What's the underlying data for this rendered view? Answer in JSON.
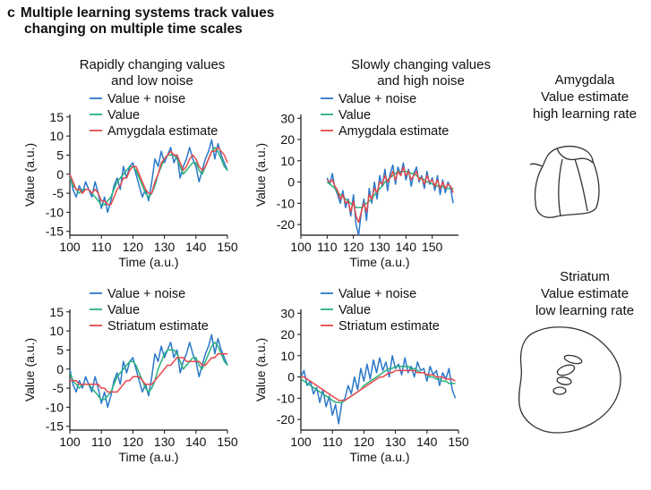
{
  "figure": {
    "panel_label": "c",
    "title_line1": "Multiple learning systems track values",
    "title_line2": "changing on multiple time scales"
  },
  "column_headers": {
    "rapid_line1": "Rapidly changing values",
    "rapid_line2": "and low noise",
    "slow_line1": "Slowly changing values",
    "slow_line2": "and high noise"
  },
  "side_labels": {
    "amygdala": [
      "Amygdala",
      "Value estimate",
      "high learning rate"
    ],
    "striatum": [
      "Striatum",
      "Value estimate",
      "low learning rate"
    ]
  },
  "colors": {
    "noise": "#2a78c8",
    "value": "#27b07a",
    "estimate": "#e8474b"
  },
  "chart_data": [
    {
      "type": "line",
      "xlabel": "Time (a.u.)",
      "ylabel": "Value (a.u.)",
      "xlim": [
        100,
        150
      ],
      "ylim": [
        -16,
        18
      ],
      "xticks": [
        100,
        110,
        120,
        130,
        140,
        150
      ],
      "yticks": [
        -15,
        -10,
        -5,
        0,
        5,
        10,
        15
      ],
      "legend_position": "top-center",
      "x": [
        100,
        101,
        102,
        103,
        104,
        105,
        106,
        107,
        108,
        109,
        110,
        111,
        112,
        113,
        114,
        115,
        116,
        117,
        118,
        119,
        120,
        121,
        122,
        123,
        124,
        125,
        126,
        127,
        128,
        129,
        130,
        131,
        132,
        133,
        134,
        135,
        136,
        137,
        138,
        139,
        140,
        141,
        142,
        143,
        144,
        145,
        146,
        147,
        148,
        149,
        150
      ],
      "series": [
        {
          "name": "Value + noise",
          "role": "noise",
          "values": [
            0,
            -4,
            -6,
            -3,
            -5,
            -2,
            -4,
            -6,
            -2,
            -5,
            -9,
            -6,
            -10,
            -7,
            -3,
            -1,
            -4,
            2,
            -1,
            2,
            3,
            0,
            -3,
            -6,
            -4,
            -7,
            -2,
            4,
            2,
            6,
            3,
            5,
            7,
            3,
            5,
            -1,
            2,
            4,
            7,
            4,
            2,
            -2,
            1,
            4,
            6,
            9,
            4,
            8,
            5,
            3,
            1
          ]
        },
        {
          "name": "Value",
          "role": "value",
          "values": [
            -1,
            -3,
            -4,
            -5,
            -4,
            -4,
            -4,
            -5,
            -6,
            -7,
            -8,
            -8,
            -7,
            -6,
            -4,
            -2,
            -1,
            0,
            1,
            2,
            2,
            1,
            -1,
            -3,
            -5,
            -6,
            -5,
            -3,
            0,
            2,
            4,
            5,
            5,
            5,
            4,
            2,
            0,
            1,
            2,
            3,
            3,
            1,
            0,
            2,
            4,
            6,
            7,
            6,
            4,
            2,
            1
          ]
        },
        {
          "name": "Amygdala estimate",
          "role": "estimate",
          "values": [
            0,
            -2,
            -4,
            -4,
            -5,
            -4,
            -4,
            -5,
            -4,
            -5,
            -7,
            -7,
            -8,
            -8,
            -6,
            -4,
            -3,
            -1,
            -1,
            1,
            2,
            2,
            0,
            -2,
            -4,
            -5,
            -5,
            -2,
            0,
            3,
            4,
            5,
            6,
            5,
            5,
            3,
            1,
            2,
            4,
            5,
            4,
            2,
            1,
            2,
            4,
            6,
            6,
            7,
            6,
            5,
            3
          ]
        }
      ]
    },
    {
      "type": "line",
      "xlabel": "Time (a.u.)",
      "ylabel": "Value (a.u.)",
      "xlim": [
        100,
        160
      ],
      "ylim": [
        -25,
        36
      ],
      "xticks": [
        100,
        110,
        120,
        130,
        140,
        150
      ],
      "yticks": [
        -20,
        -10,
        0,
        10,
        20,
        30
      ],
      "legend_position": "top-center",
      "x": [
        110,
        111,
        112,
        113,
        114,
        115,
        116,
        117,
        118,
        119,
        120,
        121,
        122,
        123,
        124,
        125,
        126,
        127,
        128,
        129,
        130,
        131,
        132,
        133,
        134,
        135,
        136,
        137,
        138,
        139,
        140,
        141,
        142,
        143,
        144,
        145,
        146,
        147,
        148,
        149,
        150,
        151,
        152,
        153,
        154,
        155,
        156,
        157,
        158
      ],
      "series": [
        {
          "name": "Value + noise",
          "role": "noise",
          "values": [
            2,
            -1,
            4,
            -3,
            -6,
            -10,
            -4,
            -12,
            -8,
            -16,
            -6,
            -20,
            -25,
            -14,
            -8,
            -18,
            -3,
            -10,
            0,
            -8,
            3,
            -2,
            6,
            -4,
            4,
            8,
            -1,
            7,
            3,
            9,
            1,
            6,
            -2,
            4,
            7,
            0,
            3,
            -3,
            5,
            -1,
            2,
            -4,
            3,
            -6,
            1,
            -5,
            0,
            -3,
            -10
          ]
        },
        {
          "name": "Value",
          "role": "value",
          "values": [
            0,
            -1,
            -2,
            -3,
            -5,
            -6,
            -7,
            -8,
            -9,
            -10,
            -11,
            -12,
            -12,
            -12,
            -11,
            -10,
            -9,
            -8,
            -6,
            -5,
            -3,
            -2,
            0,
            1,
            2,
            3,
            4,
            5,
            5,
            5,
            5,
            5,
            4,
            4,
            3,
            2,
            2,
            1,
            0,
            0,
            -1,
            -1,
            -2,
            -2,
            -2,
            -3,
            -3,
            -3,
            -3
          ]
        },
        {
          "name": "Amygdala estimate",
          "role": "estimate",
          "values": [
            1,
            0,
            1,
            -2,
            -4,
            -8,
            -6,
            -10,
            -9,
            -14,
            -9,
            -16,
            -19,
            -14,
            -10,
            -14,
            -6,
            -8,
            -3,
            -5,
            0,
            -1,
            3,
            0,
            2,
            5,
            1,
            5,
            3,
            7,
            3,
            5,
            1,
            3,
            5,
            1,
            2,
            -1,
            3,
            0,
            1,
            -2,
            1,
            -3,
            0,
            -3,
            -1,
            -2,
            -5
          ]
        }
      ]
    },
    {
      "type": "line",
      "xlabel": "Time (a.u.)",
      "ylabel": "Value (a.u.)",
      "xlim": [
        100,
        150
      ],
      "ylim": [
        -16,
        18
      ],
      "xticks": [
        100,
        110,
        120,
        130,
        140,
        150
      ],
      "yticks": [
        -15,
        -10,
        -5,
        0,
        5,
        10,
        15
      ],
      "legend_position": "top-center",
      "x": [
        100,
        101,
        102,
        103,
        104,
        105,
        106,
        107,
        108,
        109,
        110,
        111,
        112,
        113,
        114,
        115,
        116,
        117,
        118,
        119,
        120,
        121,
        122,
        123,
        124,
        125,
        126,
        127,
        128,
        129,
        130,
        131,
        132,
        133,
        134,
        135,
        136,
        137,
        138,
        139,
        140,
        141,
        142,
        143,
        144,
        145,
        146,
        147,
        148,
        149,
        150
      ],
      "series": [
        {
          "name": "Value + noise",
          "role": "noise",
          "values": [
            0,
            -4,
            -6,
            -3,
            -5,
            -2,
            -4,
            -6,
            -2,
            -5,
            -9,
            -6,
            -10,
            -7,
            -3,
            -1,
            -4,
            2,
            -1,
            2,
            3,
            0,
            -3,
            -6,
            -4,
            -7,
            -2,
            4,
            2,
            6,
            3,
            5,
            7,
            3,
            5,
            -1,
            2,
            4,
            7,
            4,
            2,
            -2,
            1,
            4,
            6,
            9,
            4,
            8,
            5,
            3,
            1
          ]
        },
        {
          "name": "Value",
          "role": "value",
          "values": [
            -1,
            -3,
            -4,
            -5,
            -4,
            -4,
            -4,
            -5,
            -6,
            -7,
            -8,
            -8,
            -7,
            -6,
            -4,
            -2,
            -1,
            0,
            1,
            2,
            2,
            1,
            -1,
            -3,
            -5,
            -6,
            -5,
            -3,
            0,
            2,
            4,
            5,
            5,
            5,
            4,
            2,
            0,
            1,
            2,
            3,
            3,
            1,
            0,
            2,
            4,
            6,
            7,
            6,
            4,
            2,
            1
          ]
        },
        {
          "name": "Striatum estimate",
          "role": "estimate",
          "values": [
            -3,
            -3,
            -3,
            -4,
            -4,
            -4,
            -4,
            -4,
            -4,
            -4,
            -5,
            -5,
            -6,
            -6,
            -6,
            -6,
            -5,
            -4,
            -3,
            -3,
            -2,
            -2,
            -2,
            -3,
            -4,
            -4,
            -4,
            -3,
            -2,
            -1,
            0,
            1,
            1,
            2,
            3,
            3,
            3,
            2,
            2,
            2,
            2,
            2,
            1,
            1,
            2,
            3,
            3,
            4,
            4,
            4,
            4
          ]
        }
      ]
    },
    {
      "type": "line",
      "xlabel": "Time (a.u.)",
      "ylabel": "Value (a.u.)",
      "xlim": [
        100,
        150
      ],
      "ylim": [
        -25,
        36
      ],
      "xticks": [
        100,
        110,
        120,
        130,
        140,
        150
      ],
      "yticks": [
        -20,
        -10,
        0,
        10,
        20,
        30
      ],
      "legend_position": "top-center",
      "x": [
        100,
        101,
        102,
        103,
        104,
        105,
        106,
        107,
        108,
        109,
        110,
        111,
        112,
        113,
        114,
        115,
        116,
        117,
        118,
        119,
        120,
        121,
        122,
        123,
        124,
        125,
        126,
        127,
        128,
        129,
        130,
        131,
        132,
        133,
        134,
        135,
        136,
        137,
        138,
        139,
        140,
        141,
        142,
        143,
        144,
        145,
        146,
        147,
        148,
        149
      ],
      "series": [
        {
          "name": "Value + noise",
          "role": "noise",
          "values": [
            0,
            3,
            -4,
            -2,
            -8,
            -5,
            -12,
            -6,
            -14,
            -9,
            -18,
            -13,
            -22,
            -12,
            -10,
            -4,
            -8,
            0,
            -6,
            4,
            -2,
            6,
            -1,
            8,
            2,
            9,
            3,
            7,
            0,
            10,
            4,
            6,
            1,
            9,
            2,
            5,
            0,
            7,
            3,
            4,
            -2,
            5,
            1,
            3,
            -4,
            2,
            -1,
            4,
            -6,
            -10
          ]
        },
        {
          "name": "Value",
          "role": "value",
          "values": [
            -1,
            -2,
            -3,
            -4,
            -5,
            -6,
            -7,
            -8,
            -9,
            -10,
            -11,
            -12,
            -12,
            -12,
            -11,
            -10,
            -9,
            -8,
            -7,
            -6,
            -4,
            -3,
            -2,
            -1,
            0,
            1,
            2,
            3,
            4,
            4,
            5,
            5,
            5,
            5,
            5,
            4,
            4,
            3,
            2,
            2,
            1,
            0,
            0,
            -1,
            -1,
            -2,
            -2,
            -3,
            -3,
            -3
          ]
        },
        {
          "name": "Striatum estimate",
          "role": "estimate",
          "values": [
            0,
            0,
            -1,
            -2,
            -3,
            -4,
            -5,
            -6,
            -7,
            -8,
            -9,
            -10,
            -11,
            -11,
            -11,
            -10,
            -9,
            -8,
            -7,
            -6,
            -5,
            -4,
            -3,
            -2,
            -1,
            0,
            0,
            1,
            2,
            2,
            3,
            3,
            3,
            3,
            3,
            3,
            3,
            2,
            2,
            2,
            1,
            1,
            1,
            0,
            0,
            0,
            -1,
            -1,
            -1,
            -2
          ]
        }
      ]
    }
  ]
}
